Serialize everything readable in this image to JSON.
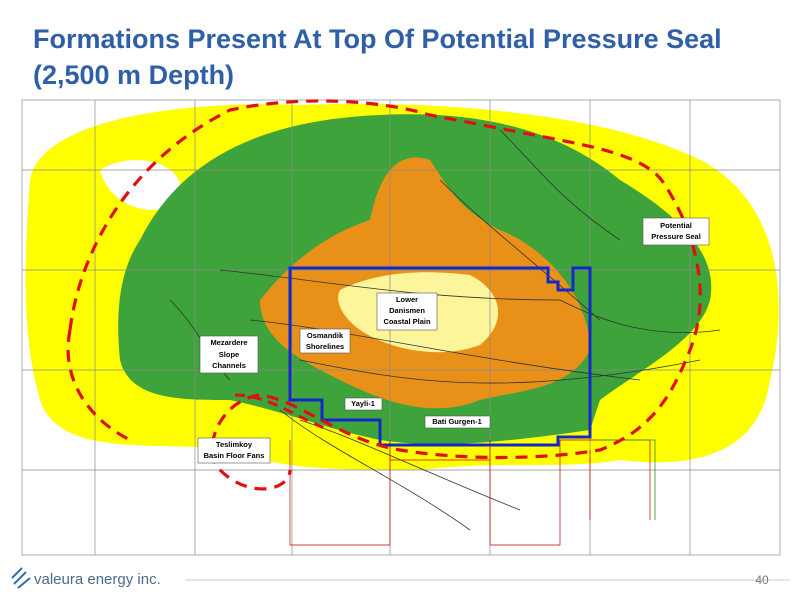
{
  "header": {
    "title_lines": [
      "Formations Present At Top Of Potential Pressure Seal",
      "(2,500 m Depth)"
    ]
  },
  "map": {
    "labels": [
      {
        "lines": [
          "Potential",
          "Pressure Seal"
        ]
      },
      {
        "lines": [
          "Lower",
          "Danismen",
          "Coastal Plain"
        ]
      },
      {
        "lines": [
          "Osmandik",
          "Shorelines"
        ]
      },
      {
        "lines": [
          "Mezardere",
          "Slope",
          "Channels"
        ]
      },
      {
        "lines": [
          "Yayli-1"
        ]
      },
      {
        "lines": [
          "Bati Gurgen-1"
        ]
      },
      {
        "lines": [
          "Teslimkoy",
          "Basin Floor Fans"
        ]
      }
    ]
  },
  "footer": {
    "logo": "valeura energy inc.",
    "page_number": "40"
  }
}
